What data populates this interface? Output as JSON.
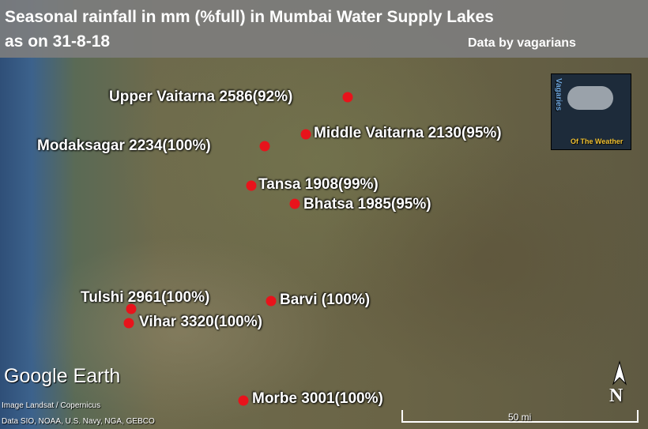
{
  "header": {
    "title_lines": [
      "Seasonal rainfall in mm (%full) in Mumbai Water Supply Lakes",
      "as on 31-8-18"
    ],
    "credit": "Data by vagarians"
  },
  "lakes": [
    {
      "label": "Upper Vaitarna 2586(92%)"
    },
    {
      "label": "Middle Vaitarna 2130(95%)"
    },
    {
      "label": "Modaksagar 2234(100%)"
    },
    {
      "label": "Tansa 1908(99%)"
    },
    {
      "label": "Bhatsa 1985(95%)"
    },
    {
      "label": "Tulshi 2961(100%)"
    },
    {
      "label": "Barvi (100%)"
    },
    {
      "label": "Vihar 3320(100%)"
    },
    {
      "label": "Morbe 3001(100%)"
    }
  ],
  "logo": {
    "top": "Vagaries",
    "bottom": "Of The Weather"
  },
  "brand": "Google Earth",
  "attribution": [
    "Image Landsat / Copernicus",
    "Data SIO, NOAA, U.S. Navy, NGA, GEBCO"
  ],
  "scale": "50 mi",
  "north": "N"
}
